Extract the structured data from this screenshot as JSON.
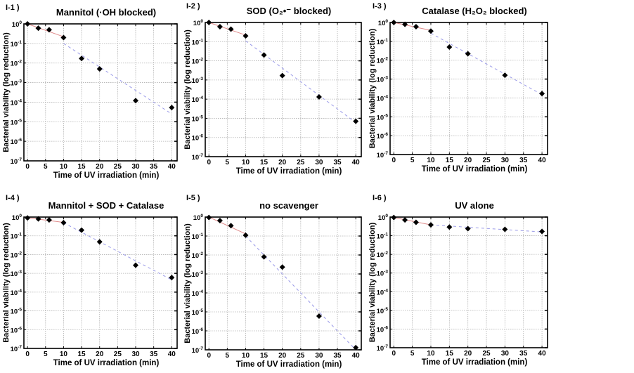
{
  "figure": {
    "colors": {
      "marker": "#000000",
      "fit_early": "#e08a8a",
      "fit_late": "#9a9ae8",
      "grid": "#b0b0b0",
      "axis": "#000000"
    }
  },
  "chart_data": [
    {
      "type": "scatter",
      "panel_label": "I-1 )",
      "title": "Mannitol (·OH blocked)",
      "xlabel": "Time of UV irradiation (min)",
      "ylabel": "Bacterial viability (log reduction)",
      "yscale": "log",
      "xlim": [
        -1,
        41.5
      ],
      "ylim": [
        1e-07,
        1
      ],
      "xticks": [
        0,
        5,
        10,
        15,
        20,
        25,
        30,
        35,
        40
      ],
      "yticks_exp": [
        0,
        -1,
        -2,
        -3,
        -4,
        -5,
        -6,
        -7
      ],
      "grid": true,
      "x": [
        0,
        3,
        6,
        10,
        15,
        20,
        30,
        40
      ],
      "y": [
        1.0,
        0.6,
        0.5,
        0.2,
        0.017,
        0.005,
        0.00012,
        5.3e-05
      ],
      "fits": [
        {
          "style": "solid",
          "color": "fit_early",
          "x": [
            0,
            10
          ],
          "y": [
            1.0,
            0.22
          ]
        },
        {
          "style": "dashed",
          "color": "fit_late",
          "x": [
            10,
            40
          ],
          "y": [
            0.1,
            2.5e-05
          ]
        }
      ]
    },
    {
      "type": "scatter",
      "panel_label": "I-2 )",
      "title": "SOD (O₂•⁻ blocked)",
      "xlabel": "Time of UV irradiation (min)",
      "ylabel": "Bacterial viability (log reduction)",
      "yscale": "log",
      "xlim": [
        -1,
        41.5
      ],
      "ylim": [
        1e-07,
        1
      ],
      "xticks": [
        0,
        5,
        10,
        15,
        20,
        25,
        30,
        35,
        40
      ],
      "yticks_exp": [
        0,
        -1,
        -2,
        -3,
        -4,
        -5,
        -6,
        -7
      ],
      "grid": true,
      "x": [
        0,
        3,
        6,
        10,
        15,
        20,
        30,
        40
      ],
      "y": [
        1.0,
        0.6,
        0.45,
        0.2,
        0.02,
        0.0017,
        0.00013,
        7e-06
      ],
      "fits": [
        {
          "style": "solid",
          "color": "fit_early",
          "x": [
            0,
            10
          ],
          "y": [
            1.0,
            0.22
          ]
        },
        {
          "style": "dashed",
          "color": "fit_late",
          "x": [
            10,
            40
          ],
          "y": [
            0.11,
            6e-06
          ]
        }
      ]
    },
    {
      "type": "scatter",
      "panel_label": "I-3 )",
      "title": "Catalase (H₂O₂ blocked)",
      "xlabel": "Time of UV irradiation (min)",
      "ylabel": "Bacterial viability (log reduction)",
      "yscale": "log",
      "xlim": [
        -1,
        41.5
      ],
      "ylim": [
        1e-07,
        1
      ],
      "xticks": [
        0,
        5,
        10,
        15,
        20,
        25,
        30,
        35,
        40
      ],
      "yticks_exp": [
        0,
        -1,
        -2,
        -3,
        -4,
        -5,
        -6,
        -7
      ],
      "grid": true,
      "x": [
        0,
        3,
        6,
        10,
        15,
        20,
        30,
        40
      ],
      "y": [
        1.0,
        0.8,
        0.6,
        0.35,
        0.05,
        0.022,
        0.0016,
        0.00017
      ],
      "fits": [
        {
          "style": "solid",
          "color": "fit_early",
          "x": [
            0,
            10
          ],
          "y": [
            1.0,
            0.38
          ]
        },
        {
          "style": "dashed",
          "color": "fit_late",
          "x": [
            10,
            40
          ],
          "y": [
            0.27,
            0.00015
          ]
        }
      ]
    },
    {
      "type": "scatter",
      "panel_label": "I-4 )",
      "title": "Mannitol + SOD + Catalase",
      "xlabel": "Time of UV irradiation (min)",
      "ylabel": "Bacterial viability (log reduction)",
      "yscale": "log",
      "xlim": [
        -1,
        41.5
      ],
      "ylim": [
        1e-07,
        1
      ],
      "xticks": [
        0,
        5,
        10,
        15,
        20,
        25,
        30,
        35,
        40
      ],
      "yticks_exp": [
        0,
        -1,
        -2,
        -3,
        -4,
        -5,
        -6,
        -7
      ],
      "grid": true,
      "x": [
        0,
        3,
        6,
        10,
        15,
        20,
        30,
        40
      ],
      "y": [
        0.9,
        0.8,
        0.7,
        0.5,
        0.2,
        0.048,
        0.0027,
        0.0006
      ],
      "fits": [
        {
          "style": "solid",
          "color": "fit_early",
          "x": [
            0,
            10
          ],
          "y": [
            0.92,
            0.52
          ]
        },
        {
          "style": "dashed",
          "color": "fit_late",
          "x": [
            10,
            40
          ],
          "y": [
            0.5,
            0.00045
          ]
        }
      ]
    },
    {
      "type": "scatter",
      "panel_label": "I-5 )",
      "title": "no scavenger",
      "xlabel": "Time of UV irradiation (min)",
      "ylabel": "Bacterial viability (log reduction)",
      "yscale": "log",
      "xlim": [
        -1,
        41.5
      ],
      "ylim": [
        1e-07,
        1
      ],
      "xticks": [
        0,
        5,
        10,
        15,
        20,
        25,
        30,
        35,
        40
      ],
      "yticks_exp": [
        0,
        -1,
        -2,
        -3,
        -4,
        -5,
        -6,
        -7
      ],
      "grid": true,
      "x": [
        0,
        3,
        6,
        10,
        15,
        20,
        30,
        40
      ],
      "y": [
        0.95,
        0.65,
        0.35,
        0.11,
        0.008,
        0.0023,
        6e-06,
        1.3e-07
      ],
      "fits": [
        {
          "style": "solid",
          "color": "fit_early",
          "x": [
            0,
            10
          ],
          "y": [
            1.0,
            0.13
          ]
        },
        {
          "style": "dashed",
          "color": "fit_late",
          "x": [
            10,
            40
          ],
          "y": [
            0.1,
            1e-07
          ]
        }
      ]
    },
    {
      "type": "scatter",
      "panel_label": "I-6 )",
      "title": "UV alone",
      "xlabel": "Time of UV irradiation (min)",
      "ylabel": "Bacterial viability (log reduction)",
      "yscale": "log",
      "xlim": [
        -1,
        41.5
      ],
      "ylim": [
        1e-07,
        1
      ],
      "xticks": [
        0,
        5,
        10,
        15,
        20,
        25,
        30,
        35,
        40
      ],
      "yticks_exp": [
        0,
        -1,
        -2,
        -3,
        -4,
        -5,
        -6,
        -7
      ],
      "grid": true,
      "x": [
        0,
        3,
        6,
        10,
        15,
        20,
        30,
        40
      ],
      "y": [
        0.95,
        0.7,
        0.52,
        0.38,
        0.29,
        0.24,
        0.22,
        0.17
      ],
      "fits": [
        {
          "style": "solid",
          "color": "fit_early",
          "x": [
            0,
            10
          ],
          "y": [
            0.95,
            0.38
          ]
        },
        {
          "style": "dashed",
          "color": "fit_late",
          "x": [
            10,
            40
          ],
          "y": [
            0.38,
            0.16
          ]
        }
      ]
    }
  ]
}
